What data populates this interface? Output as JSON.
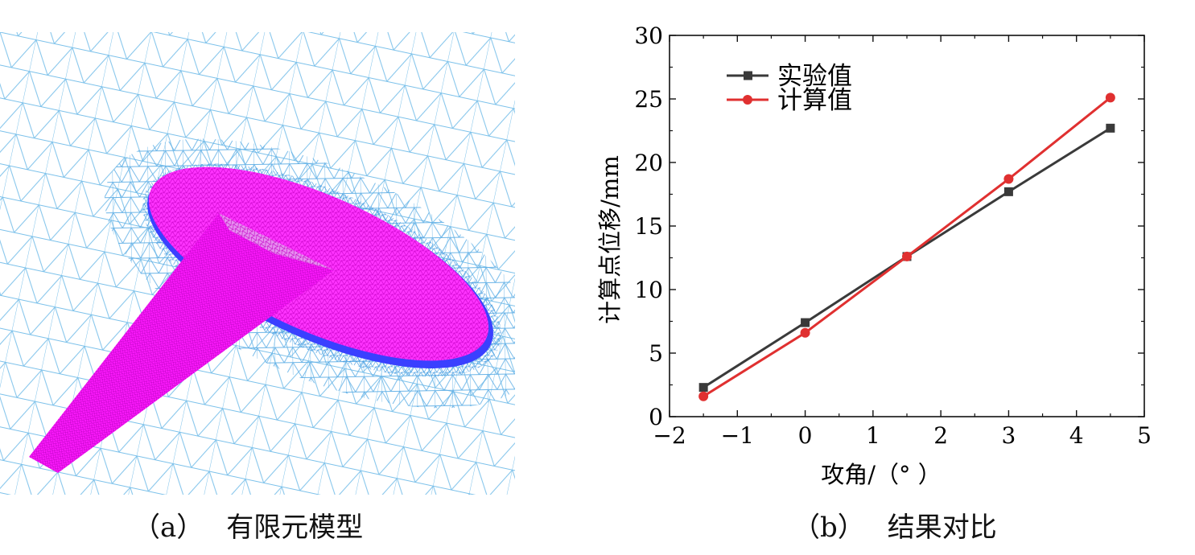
{
  "panel_a": {
    "caption_label": "（a）",
    "caption_text": "有限元模型",
    "colors": {
      "mesh_background": "#6fb8e8",
      "model_mesh": "#ff1aff",
      "model_edge": "#3a40ff"
    }
  },
  "panel_b": {
    "caption_label": "（b）",
    "caption_text": "结果对比"
  },
  "chart_data": {
    "type": "line",
    "title": "",
    "xlabel": "攻角/（°  ）",
    "ylabel": "计算点位移/mm",
    "xlim": [
      -2,
      5
    ],
    "ylim": [
      0,
      30
    ],
    "xticks": [
      -2,
      -1,
      0,
      1,
      2,
      3,
      4,
      5
    ],
    "xtick_labels": [
      "−2",
      "−1",
      "0",
      "1",
      "2",
      "3",
      "4",
      "5"
    ],
    "yticks": [
      0,
      5,
      10,
      15,
      20,
      25,
      30
    ],
    "ytick_labels": [
      "0",
      "5",
      "10",
      "15",
      "20",
      "25",
      "30"
    ],
    "grid": false,
    "legend_position": "top-left",
    "series": [
      {
        "name": "实验值",
        "marker": "square",
        "color": "#3a3a3a",
        "x": [
          -1.5,
          0,
          1.5,
          3,
          4.5
        ],
        "y": [
          2.3,
          7.4,
          12.6,
          17.7,
          22.7
        ]
      },
      {
        "name": "计算值",
        "marker": "circle",
        "color": "#e03030",
        "x": [
          -1.5,
          0,
          1.5,
          3,
          4.5
        ],
        "y": [
          1.6,
          6.6,
          12.6,
          18.7,
          25.1
        ]
      }
    ]
  }
}
